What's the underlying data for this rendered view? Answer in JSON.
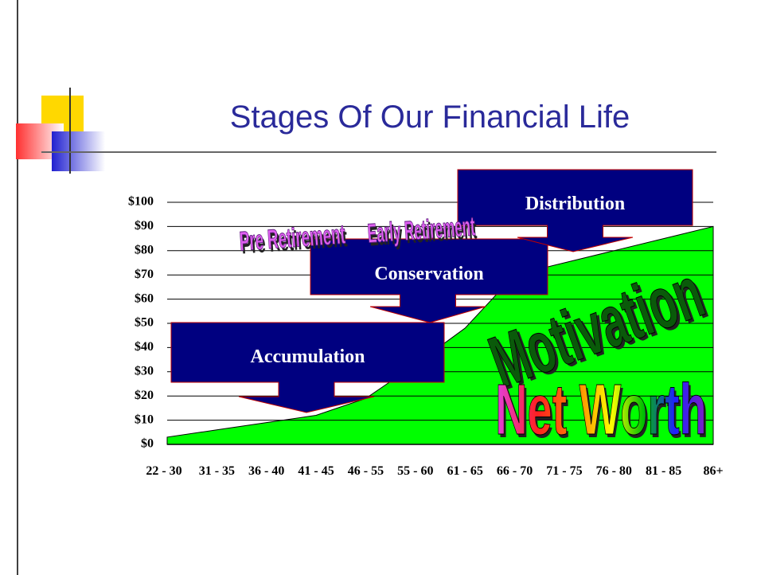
{
  "chart_data": {
    "type": "area",
    "title": "Stages Of Our Financial Life",
    "categories": [
      "22 - 30",
      "31 - 35",
      "36 - 40",
      "41 - 45",
      "46 - 55",
      "55 - 60",
      "61 - 65",
      "66 - 70",
      "71 - 75",
      "76 - 80",
      "81 - 85",
      "86+"
    ],
    "values": [
      3,
      6,
      9,
      12,
      19,
      33,
      48,
      70,
      75,
      80,
      85,
      90
    ],
    "color": "#00ff00",
    "ylim": [
      0,
      100
    ],
    "yticks": [
      {
        "value": 0,
        "label": "$0"
      },
      {
        "value": 10,
        "label": "$10"
      },
      {
        "value": 20,
        "label": "$20"
      },
      {
        "value": 30,
        "label": "$30"
      },
      {
        "value": 40,
        "label": "$40"
      },
      {
        "value": 50,
        "label": "$50"
      },
      {
        "value": 60,
        "label": "$60"
      },
      {
        "value": 70,
        "label": "$70"
      },
      {
        "value": 80,
        "label": "$80"
      },
      {
        "value": 90,
        "label": "$90"
      },
      {
        "value": 100,
        "label": "$100"
      }
    ],
    "grid": true,
    "stages": [
      "Accumulation",
      "Conservation",
      "Distribution"
    ],
    "annotations": [
      "Pre Retirement",
      "Early Retirement",
      "Motivation",
      "Net Worth"
    ]
  }
}
